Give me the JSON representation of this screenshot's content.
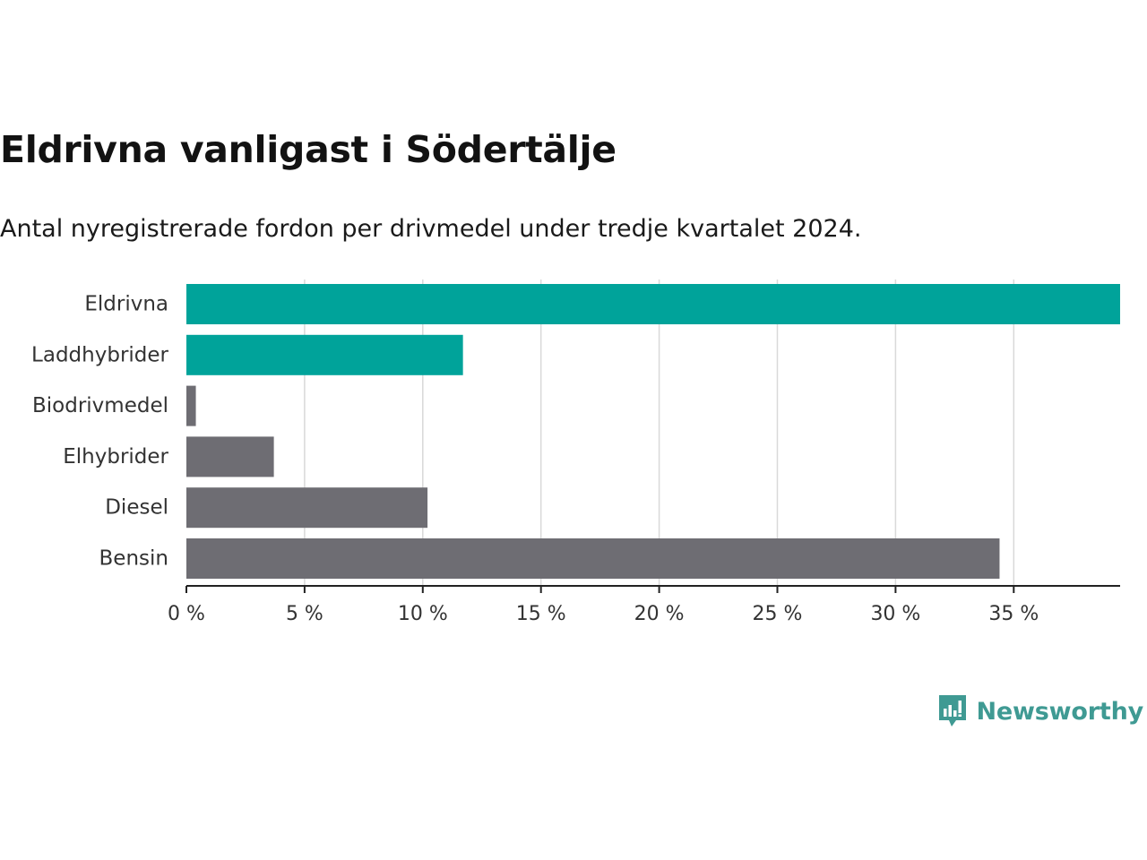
{
  "header": {
    "title": "Eldrivna vanligast i Södertälje",
    "subtitle": "Antal nyregistrerade fordon per drivmedel under tredje kvartalet 2024."
  },
  "brand": {
    "name": "Newsworthy",
    "color": "#3f9a93"
  },
  "colors": {
    "highlight": "#00a39a",
    "default": "#6e6d73",
    "grid": "#d9d9d9",
    "axis": "#222222"
  },
  "chart_data": {
    "type": "bar",
    "orientation": "horizontal",
    "title": "Eldrivna vanligast i Södertälje",
    "subtitle": "Antal nyregistrerade fordon per drivmedel under tredje kvartalet 2024.",
    "xlabel": "",
    "ylabel": "",
    "categories": [
      "Eldrivna",
      "Laddhybrider",
      "Biodrivmedel",
      "Elhybrider",
      "Diesel",
      "Bensin"
    ],
    "values": [
      39.5,
      11.7,
      0.4,
      3.7,
      10.2,
      34.4
    ],
    "highlighted": [
      true,
      true,
      false,
      false,
      false,
      false
    ],
    "xlim": [
      0,
      39.5
    ],
    "x_ticks": [
      0,
      5,
      10,
      15,
      20,
      25,
      30,
      35
    ],
    "x_tick_labels": [
      "0 %",
      "5 %",
      "10 %",
      "15 %",
      "20 %",
      "25 %",
      "30 %",
      "35 %"
    ],
    "grid": true
  }
}
